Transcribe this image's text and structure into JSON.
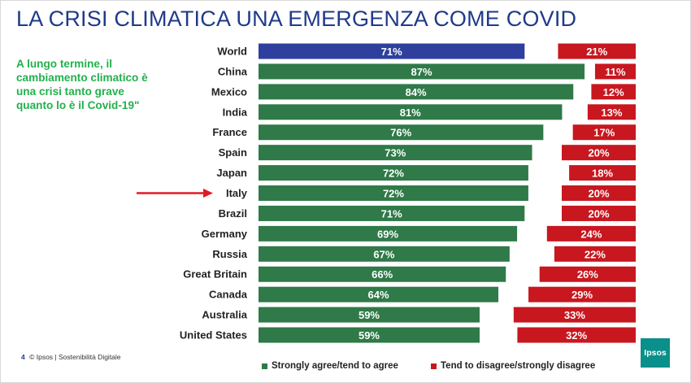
{
  "page": {
    "title": "LA CRISI CLIMATICA UNA EMERGENZA COME COVID",
    "callout_lines": [
      "A lungo termine, il",
      "cambiamento climatico è",
      "una crisi tanto grave",
      "quanto lo è il Covid-19\""
    ],
    "footer": {
      "page_number": "4",
      "text": "© Ipsos | Sostenibilità Digitale"
    },
    "logo_text": "Ipsos"
  },
  "colors": {
    "title": "#1f3a8a",
    "callout": "#22b14c",
    "world_bar": "#2e3f9e",
    "agree_bar": "#2f7a48",
    "disagree_bar": "#c8171f",
    "arrow": "#e01b24"
  },
  "chart_data": {
    "type": "bar",
    "orientation": "horizontal",
    "categories": [
      "World",
      "China",
      "Mexico",
      "India",
      "France",
      "Spain",
      "Japan",
      "Italy",
      "Brazil",
      "Germany",
      "Russia",
      "Great Britain",
      "Canada",
      "Australia",
      "United States"
    ],
    "series": [
      {
        "name": "Strongly agree/tend to agree",
        "values": [
          71,
          87,
          84,
          81,
          76,
          73,
          72,
          72,
          71,
          69,
          67,
          66,
          64,
          59,
          59
        ],
        "color": "#2f7a48"
      },
      {
        "name": "Tend to disagree/strongly disagree",
        "values": [
          21,
          11,
          12,
          13,
          17,
          20,
          18,
          20,
          20,
          24,
          22,
          26,
          29,
          33,
          32
        ],
        "color": "#c8171f"
      }
    ],
    "value_suffix": "%",
    "highlight_category": "World",
    "highlight_color": "#2e3f9e",
    "arrow_points_to": "Italy",
    "legend_position": "bottom"
  }
}
